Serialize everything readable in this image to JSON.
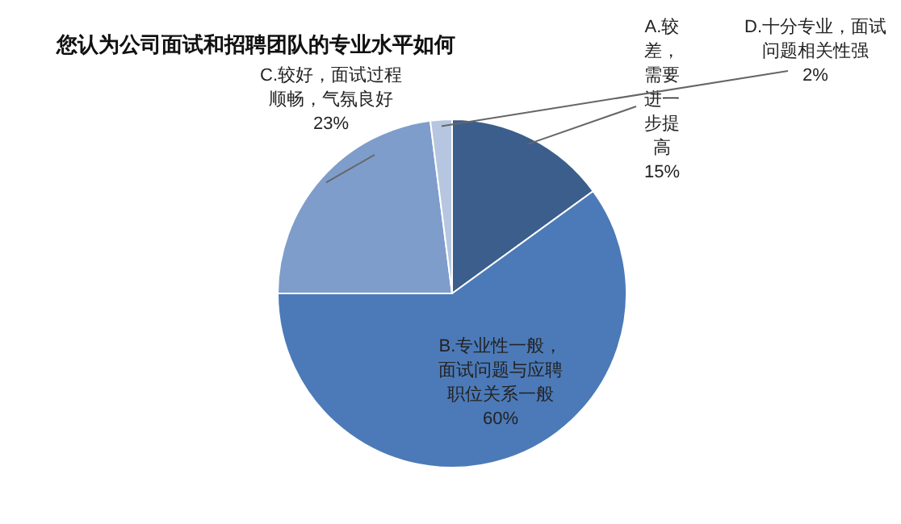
{
  "chart_data": {
    "type": "pie",
    "title": "您认为公司面试和招聘团队的专业水平如何",
    "categories": [
      "A.较差，需要进一步提高",
      "B.专业性一般，面试问题与应聘职位关系一般",
      "C.较好，面试过程顺畅，气氛良好",
      "D.十分专业，面试问题相关性强"
    ],
    "values": [
      15,
      60,
      23,
      2
    ],
    "value_labels": [
      "15%",
      "60%",
      "23%",
      "2%"
    ],
    "colors": [
      "#3b5e8c",
      "#4c7ab8",
      "#7f9dcb",
      "#b6c6e0"
    ]
  }
}
